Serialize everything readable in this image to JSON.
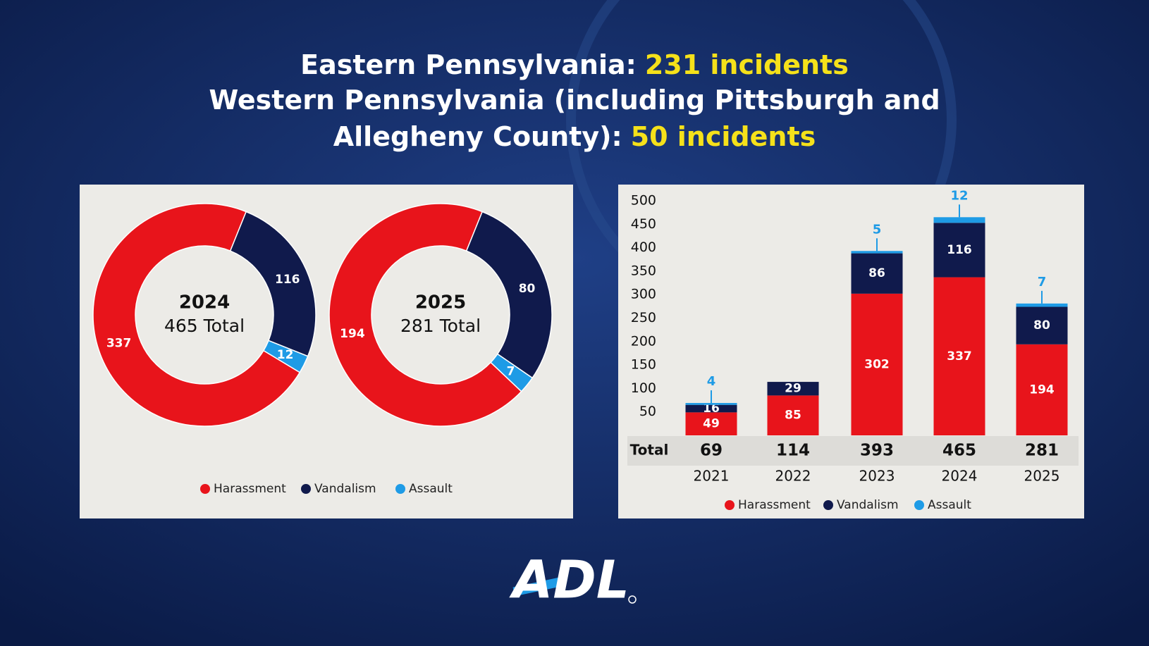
{
  "header": {
    "lines": [
      {
        "text": "Eastern Pennsylvania:",
        "highlight": "231 incidents"
      },
      {
        "text": "Western Pennsylvania (including Pittsburgh and"
      },
      {
        "text": "Allegheny County):",
        "highlight": "50 incidents"
      }
    ]
  },
  "logo": "ADL",
  "chart_data": [
    {
      "type": "donut",
      "categories": [
        "Harassment",
        "Vandalism",
        "Assault"
      ],
      "colors": [
        "#e8141b",
        "#101a4c",
        "#1e9be6"
      ],
      "pies": [
        {
          "title": "2024",
          "subtitle": "465 Total",
          "values": [
            337,
            116,
            12
          ]
        },
        {
          "title": "2025",
          "subtitle": "281 Total",
          "values": [
            194,
            80,
            7
          ]
        }
      ]
    },
    {
      "type": "bar",
      "stacked": true,
      "categories": [
        "2021",
        "2022",
        "2023",
        "2024",
        "2025"
      ],
      "series": [
        {
          "name": "Harassment",
          "color": "#e8141b",
          "values": [
            49,
            85,
            302,
            337,
            194
          ]
        },
        {
          "name": "Vandalism",
          "color": "#101a4c",
          "values": [
            16,
            29,
            86,
            116,
            80
          ]
        },
        {
          "name": "Assault",
          "color": "#1e9be6",
          "values": [
            4,
            0,
            5,
            12,
            7
          ]
        }
      ],
      "totals_label": "Total",
      "totals": [
        69,
        114,
        393,
        465,
        281
      ],
      "ylim": [
        0,
        500
      ],
      "yticks": [
        50,
        100,
        150,
        200,
        250,
        300,
        350,
        400,
        450,
        500
      ]
    }
  ]
}
